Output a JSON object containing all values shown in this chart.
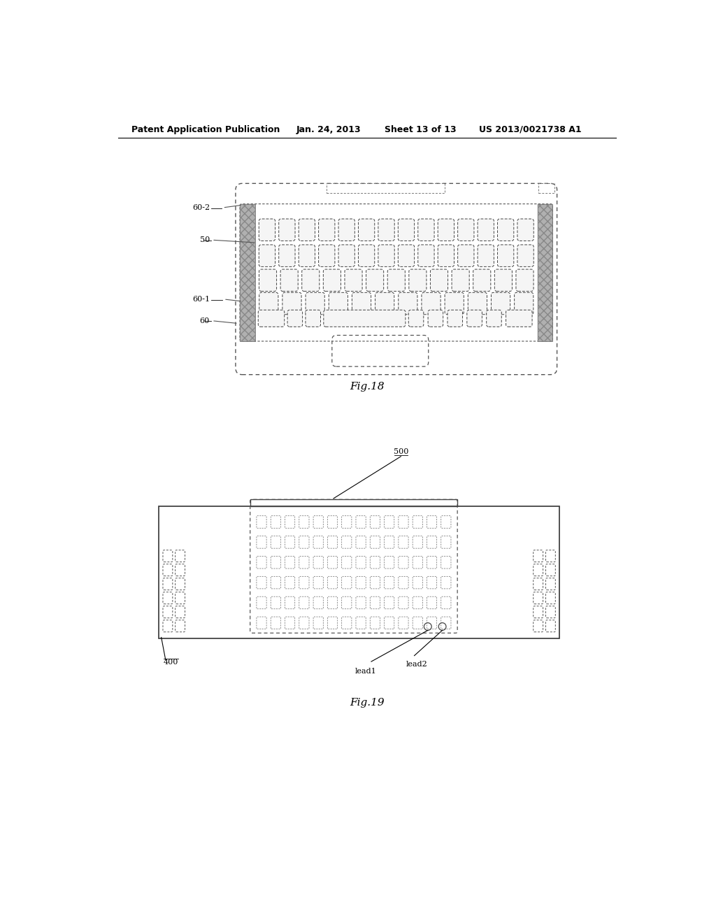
{
  "bg_color": "#ffffff",
  "header_text": "Patent Application Publication",
  "header_date": "Jan. 24, 2013",
  "header_sheet": "Sheet 13 of 13",
  "header_patent": "US 2013/0021738 A1",
  "fig18_label": "Fig.18",
  "fig19_label": "Fig.19"
}
